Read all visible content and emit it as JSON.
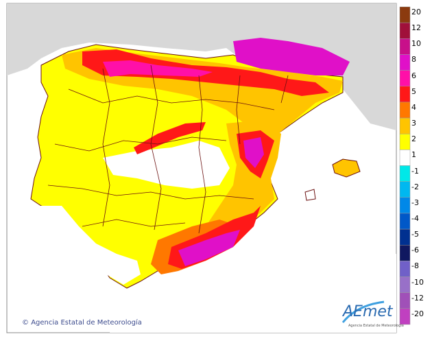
{
  "map": {
    "credit": "Agencia Estatal de Meteorología",
    "copyright_symbol": "©",
    "logo": {
      "brand": "AEmet",
      "subtitle": "Agencia Estatal de Meteorología"
    },
    "sea_color": "#ffffff",
    "land_outside_color": "#d8d8d8"
  },
  "legend": {
    "entries": [
      {
        "label": "20",
        "color": "#8b3a0f"
      },
      {
        "label": "12",
        "color": "#a0103a"
      },
      {
        "label": "10",
        "color": "#c8108a"
      },
      {
        "label": "8",
        "color": "#e010c8"
      },
      {
        "label": "6",
        "color": "#ff10a8"
      },
      {
        "label": "5",
        "color": "#ff1818"
      },
      {
        "label": "4",
        "color": "#ff7800"
      },
      {
        "label": "3",
        "color": "#ffc400"
      },
      {
        "label": "2",
        "color": "#ffff00"
      },
      {
        "label": "1",
        "color": "#ffffff"
      },
      {
        "label": "-1",
        "color": "#00e8e8"
      },
      {
        "label": "-2",
        "color": "#00b8f0"
      },
      {
        "label": "-3",
        "color": "#0088e8"
      },
      {
        "label": "-4",
        "color": "#0058c8"
      },
      {
        "label": "-5",
        "color": "#003090"
      },
      {
        "label": "-6",
        "color": "#101860"
      },
      {
        "label": "-8",
        "color": "#7060c8"
      },
      {
        "label": "-10",
        "color": "#9870c8"
      },
      {
        "label": "-12",
        "color": "#a050b8"
      },
      {
        "label": "-20",
        "color": "#c040c0"
      }
    ]
  }
}
